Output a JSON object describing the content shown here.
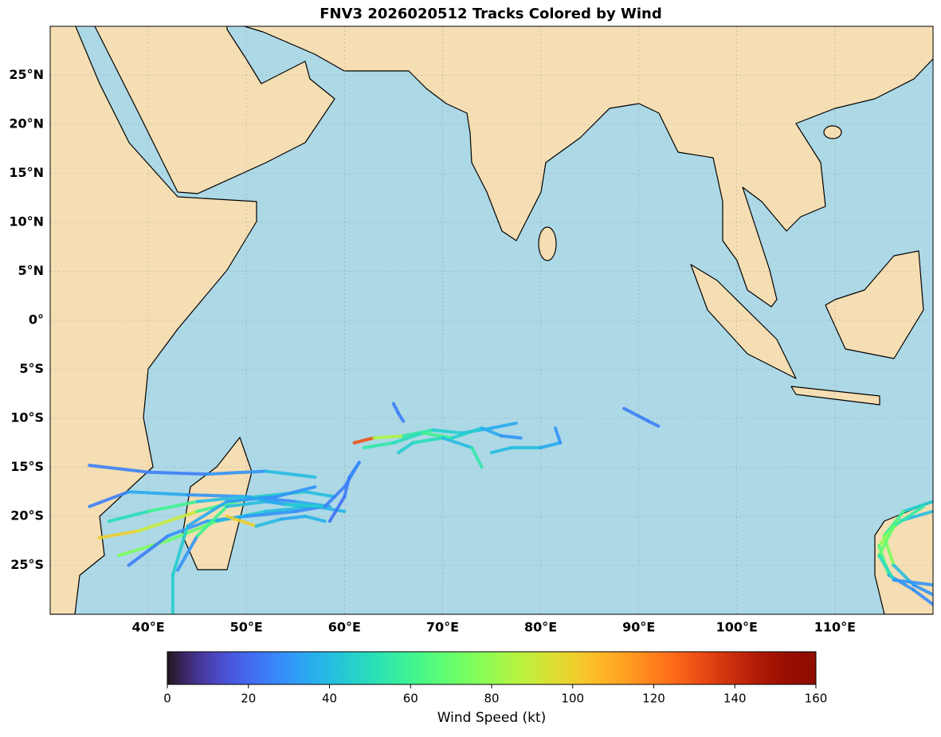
{
  "chart_data": {
    "type": "track_map",
    "title": "FNV3 2026020512 Tracks Colored by Wind",
    "xlim": [
      30,
      120
    ],
    "ylim": [
      -30,
      30
    ],
    "xticks": [
      {
        "value": 40,
        "label": "40°E"
      },
      {
        "value": 50,
        "label": "50°E"
      },
      {
        "value": 60,
        "label": "60°E"
      },
      {
        "value": 70,
        "label": "70°E"
      },
      {
        "value": 80,
        "label": "80°E"
      },
      {
        "value": 90,
        "label": "90°E"
      },
      {
        "value": 100,
        "label": "100°E"
      },
      {
        "value": 110,
        "label": "110°E"
      }
    ],
    "yticks": [
      {
        "value": 25,
        "label": "25°N"
      },
      {
        "value": 20,
        "label": "20°N"
      },
      {
        "value": 15,
        "label": "15°N"
      },
      {
        "value": 10,
        "label": "10°N"
      },
      {
        "value": 5,
        "label": "5°N"
      },
      {
        "value": 0,
        "label": "0°"
      },
      {
        "value": -5,
        "label": "5°S"
      },
      {
        "value": -10,
        "label": "10°S"
      },
      {
        "value": -15,
        "label": "15°S"
      },
      {
        "value": -20,
        "label": "20°S"
      },
      {
        "value": -25,
        "label": "25°S"
      }
    ],
    "grid": true,
    "colorbar": {
      "label": "Wind Speed (kt)",
      "colormap": "turbo",
      "clim": [
        0,
        160
      ],
      "ticks": [
        0,
        20,
        40,
        60,
        80,
        100,
        120,
        140,
        160
      ]
    },
    "tracks": [
      {
        "lon": [
          34,
          40,
          46,
          52,
          57
        ],
        "lat": [
          -14.8,
          -15.5,
          -15.7,
          -15.4,
          -16
        ],
        "wind": [
          25,
          25,
          30,
          40,
          35
        ]
      },
      {
        "lon": [
          34,
          38,
          44,
          50,
          55,
          58.5
        ],
        "lat": [
          -19,
          -17.5,
          -17.8,
          -18,
          -18.5,
          -19
        ],
        "wind": [
          25,
          35,
          30,
          28,
          35,
          30
        ]
      },
      {
        "lon": [
          35,
          39,
          45,
          51,
          56,
          59
        ],
        "lat": [
          -22.2,
          -21.5,
          -19.5,
          -18,
          -17.5,
          -18
        ],
        "wind": [
          100,
          90,
          60,
          45,
          40,
          35
        ]
      },
      {
        "lon": [
          37,
          42,
          47,
          52,
          57,
          60
        ],
        "lat": [
          -24,
          -22.5,
          -20.5,
          -19.5,
          -19,
          -19.5
        ],
        "wind": [
          75,
          70,
          45,
          40,
          38,
          30
        ]
      },
      {
        "lon": [
          38,
          42,
          46,
          50,
          55,
          58
        ],
        "lat": [
          -25,
          -22,
          -20.5,
          -20,
          -19.5,
          -19
        ],
        "wind": [
          25,
          30,
          35,
          30,
          28,
          25
        ]
      },
      {
        "lon": [
          43,
          45,
          48,
          52,
          56
        ],
        "lat": [
          -25.5,
          -22,
          -19,
          -18.5,
          -19
        ],
        "wind": [
          30,
          60,
          40,
          35,
          30
        ]
      },
      {
        "lon": [
          42.5,
          42.5,
          44,
          48,
          53,
          57
        ],
        "lat": [
          -30,
          -26,
          -21,
          -18.5,
          -18,
          -17
        ],
        "wind": [
          45,
          45,
          35,
          30,
          30,
          28
        ]
      },
      {
        "lon": [
          36,
          40,
          45,
          50,
          54,
          58
        ],
        "lat": [
          -20.5,
          -19.5,
          -18.5,
          -18,
          -18.8,
          -19
        ],
        "wind": [
          50,
          60,
          40,
          35,
          45,
          30
        ]
      },
      {
        "lon": [
          48,
          51,
          53.5,
          56,
          58
        ],
        "lat": [
          -20,
          -21,
          -20.3,
          -20,
          -20.5
        ],
        "wind": [
          100,
          40,
          35,
          38,
          30
        ]
      },
      {
        "lon": [
          58,
          60,
          61.5,
          60.5,
          60,
          58.5
        ],
        "lat": [
          -19,
          -17,
          -14.5,
          -16,
          -18,
          -20.5
        ],
        "wind": [
          25,
          25,
          28,
          25,
          22,
          25
        ]
      },
      {
        "lon": [
          61,
          63,
          66,
          69,
          72,
          75,
          77.5
        ],
        "lat": [
          -12.5,
          -12,
          -11.8,
          -11.2,
          -11.5,
          -11,
          -10.5
        ],
        "wind": [
          130,
          85,
          55,
          45,
          40,
          35,
          30
        ]
      },
      {
        "lon": [
          62,
          65,
          68,
          71,
          74,
          76,
          78
        ],
        "lat": [
          -13,
          -12.5,
          -11.5,
          -12,
          -11,
          -11.8,
          -12
        ],
        "wind": [
          55,
          50,
          60,
          45,
          35,
          30,
          25
        ]
      },
      {
        "lon": [
          65.5,
          67,
          70,
          73,
          74
        ],
        "lat": [
          -13.5,
          -12.5,
          -12,
          -13,
          -15
        ],
        "wind": [
          45,
          50,
          40,
          55,
          45
        ]
      },
      {
        "lon": [
          75,
          77,
          80,
          82,
          81.5
        ],
        "lat": [
          -13.5,
          -13,
          -13,
          -12.5,
          -11
        ],
        "wind": [
          40,
          40,
          35,
          30,
          25
        ]
      },
      {
        "lon": [
          88.5,
          91,
          92
        ],
        "lat": [
          -9,
          -10.3,
          -10.8
        ],
        "wind": [
          25,
          25,
          20
        ]
      },
      {
        "lon": [
          65,
          65.5,
          66
        ],
        "lat": [
          -8.5,
          -9.5,
          -10.3
        ],
        "wind": [
          25,
          25,
          25
        ]
      },
      {
        "lon": [
          120,
          117,
          115,
          116,
          118,
          120
        ],
        "lat": [
          -18.5,
          -19.5,
          -22,
          -25,
          -27,
          -28
        ],
        "wind": [
          45,
          60,
          75,
          40,
          30,
          25
        ]
      },
      {
        "lon": [
          120,
          116.5,
          114.5,
          115.5,
          118,
          120
        ],
        "lat": [
          -19.5,
          -20.5,
          -23,
          -26,
          -27.5,
          -29
        ],
        "wind": [
          40,
          80,
          65,
          30,
          28,
          25
        ]
      },
      {
        "lon": [
          119,
          116,
          114.5,
          116,
          120
        ],
        "lat": [
          -19,
          -21,
          -24,
          -26.5,
          -27
        ],
        "wind": [
          55,
          70,
          50,
          30,
          25
        ]
      }
    ]
  }
}
